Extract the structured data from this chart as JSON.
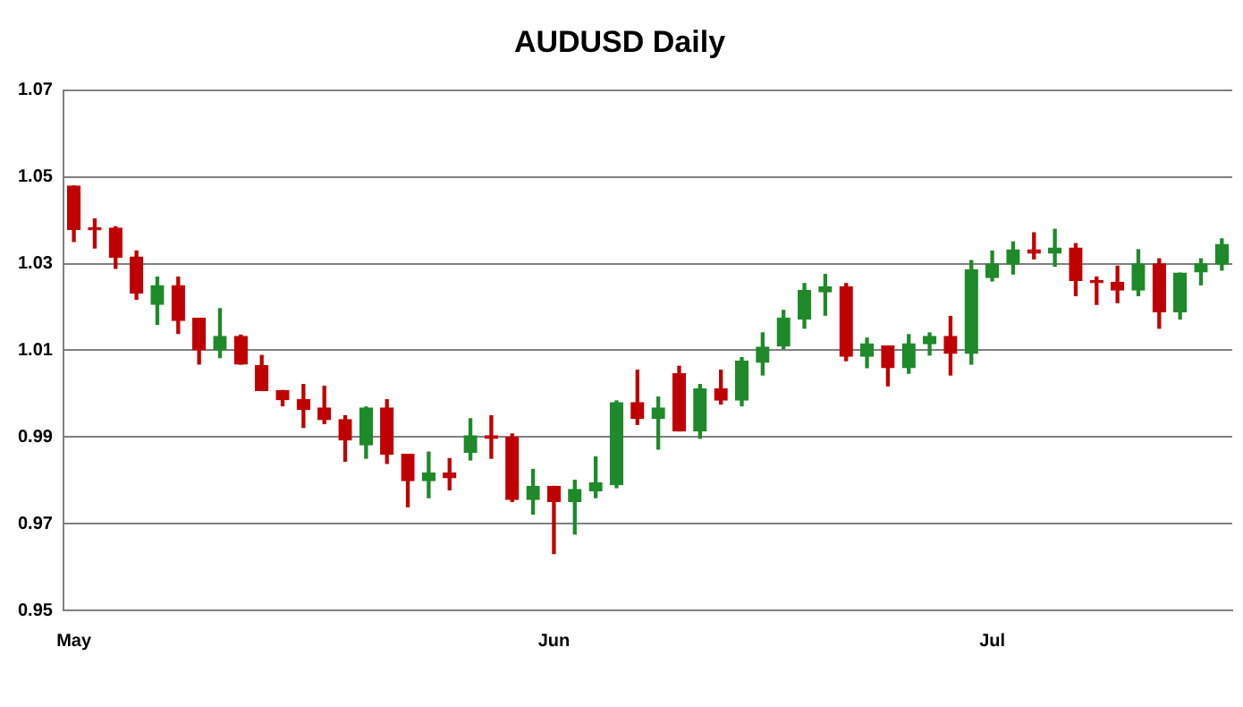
{
  "chart_data": {
    "type": "candlestick",
    "title": "AUDUSD Daily",
    "categories": [
      "May",
      null,
      null,
      null,
      null,
      null,
      null,
      null,
      null,
      null,
      null,
      null,
      null,
      null,
      null,
      null,
      null,
      null,
      null,
      null,
      null,
      null,
      null,
      "Jun",
      null,
      null,
      null,
      null,
      null,
      null,
      null,
      null,
      null,
      null,
      null,
      null,
      null,
      null,
      null,
      null,
      null,
      null,
      null,
      null,
      "Jul",
      null,
      null,
      null,
      null,
      null,
      null,
      null,
      null,
      null,
      null,
      null
    ],
    "ohlc": [
      [
        1.0479,
        1.0479,
        1.0351,
        1.0379
      ],
      [
        1.0379,
        1.0403,
        1.0336,
        1.0378
      ],
      [
        1.0382,
        1.0385,
        1.0289,
        1.0315
      ],
      [
        1.0315,
        1.0329,
        1.0218,
        1.0232
      ],
      [
        1.0206,
        1.0269,
        1.016,
        1.0249
      ],
      [
        1.0249,
        1.0269,
        1.0139,
        1.0169
      ],
      [
        1.0174,
        1.0174,
        1.0068,
        1.0101
      ],
      [
        1.0101,
        1.0196,
        1.0083,
        1.0132
      ],
      [
        1.0132,
        1.0135,
        1.0068,
        1.0068
      ],
      [
        1.0065,
        1.0088,
        1.0007,
        1.0007
      ],
      [
        1.0007,
        1.0007,
        0.9972,
        0.9986
      ],
      [
        0.9986,
        1.0021,
        0.9922,
        0.9964
      ],
      [
        0.9967,
        1.0017,
        0.9931,
        0.994
      ],
      [
        0.994,
        0.9949,
        0.9844,
        0.9893
      ],
      [
        0.9882,
        0.9969,
        0.9851,
        0.9967
      ],
      [
        0.9967,
        0.9986,
        0.9839,
        0.986
      ],
      [
        0.986,
        0.986,
        0.9739,
        0.9799
      ],
      [
        0.9799,
        0.9865,
        0.976,
        0.9817
      ],
      [
        0.9817,
        0.985,
        0.9778,
        0.9806
      ],
      [
        0.9865,
        0.9942,
        0.9847,
        0.9903
      ],
      [
        0.9903,
        0.9949,
        0.9851,
        0.9897
      ],
      [
        0.9899,
        0.9907,
        0.9751,
        0.9756
      ],
      [
        0.9756,
        0.9825,
        0.9722,
        0.9786
      ],
      [
        0.9786,
        0.9786,
        0.9631,
        0.9751
      ],
      [
        0.9751,
        0.98,
        0.9676,
        0.9779
      ],
      [
        0.9776,
        0.9854,
        0.976,
        0.9794
      ],
      [
        0.979,
        0.9983,
        0.9783,
        0.9979
      ],
      [
        0.9979,
        1.0054,
        0.9929,
        0.9943
      ],
      [
        0.9943,
        0.9992,
        0.9872,
        0.9967
      ],
      [
        1.0046,
        1.0063,
        0.9914,
        0.9914
      ],
      [
        0.9914,
        1.0021,
        0.9897,
        1.0011
      ],
      [
        1.0011,
        1.0054,
        0.9976,
        0.9985
      ],
      [
        0.9985,
        1.0083,
        0.9972,
        1.0075
      ],
      [
        1.0072,
        1.014,
        1.0043,
        1.0107
      ],
      [
        1.011,
        1.0192,
        1.0104,
        1.0174
      ],
      [
        1.0172,
        1.0254,
        1.0151,
        1.0238
      ],
      [
        1.0235,
        1.0275,
        1.0181,
        1.0246
      ],
      [
        1.0246,
        1.0254,
        1.0076,
        1.0086
      ],
      [
        1.0086,
        1.0128,
        1.006,
        1.0115
      ],
      [
        1.011,
        1.011,
        1.0018,
        1.006
      ],
      [
        1.006,
        1.0136,
        1.0047,
        1.0115
      ],
      [
        1.0115,
        1.014,
        1.0089,
        1.0132
      ],
      [
        1.0132,
        1.0178,
        1.0043,
        1.0093
      ],
      [
        1.0093,
        1.0307,
        1.0068,
        1.0286
      ],
      [
        1.0268,
        1.0329,
        1.026,
        1.0299
      ],
      [
        1.0299,
        1.035,
        1.0276,
        1.0332
      ],
      [
        1.0332,
        1.0371,
        1.0311,
        1.0324
      ],
      [
        1.0324,
        1.0379,
        1.0294,
        1.0336
      ],
      [
        1.0336,
        1.0346,
        1.0226,
        1.0261
      ],
      [
        1.0261,
        1.0269,
        1.0206,
        1.0256
      ],
      [
        1.0257,
        1.0294,
        1.021,
        1.0239
      ],
      [
        1.0239,
        1.0332,
        1.0226,
        1.0299
      ],
      [
        1.0299,
        1.0311,
        1.0151,
        1.0189
      ],
      [
        1.0189,
        1.0278,
        1.0172,
        1.0278
      ],
      [
        1.0281,
        1.0311,
        1.0251,
        1.0299
      ],
      [
        1.0299,
        1.0357,
        1.0285,
        1.0344
      ]
    ],
    "colors": [
      "#c00000",
      "#c00000",
      "#c00000",
      "#c00000",
      "#1e8a2a",
      "#c00000",
      "#c00000",
      "#1e8a2a",
      "#c00000",
      "#c00000",
      "#c00000",
      "#c00000",
      "#c00000",
      "#c00000",
      "#1e8a2a",
      "#c00000",
      "#c00000",
      "#1e8a2a",
      "#c00000",
      "#1e8a2a",
      "#c00000",
      "#c00000",
      "#1e8a2a",
      "#c00000",
      "#1e8a2a",
      "#1e8a2a",
      "#1e8a2a",
      "#c00000",
      "#1e8a2a",
      "#c00000",
      "#1e8a2a",
      "#c00000",
      "#1e8a2a",
      "#1e8a2a",
      "#1e8a2a",
      "#1e8a2a",
      "#1e8a2a",
      "#c00000",
      "#1e8a2a",
      "#c00000",
      "#1e8a2a",
      "#1e8a2a",
      "#c00000",
      "#1e8a2a",
      "#1e8a2a",
      "#1e8a2a",
      "#c00000",
      "#1e8a2a",
      "#c00000",
      "#c00000",
      "#c00000",
      "#1e8a2a",
      "#c00000",
      "#1e8a2a",
      "#1e8a2a",
      "#1e8a2a"
    ],
    "ylim": [
      0.95,
      1.07
    ],
    "yticks": [
      0.95,
      0.97,
      0.99,
      1.01,
      1.03,
      1.05,
      1.07
    ],
    "grid": "y",
    "legend": false
  }
}
